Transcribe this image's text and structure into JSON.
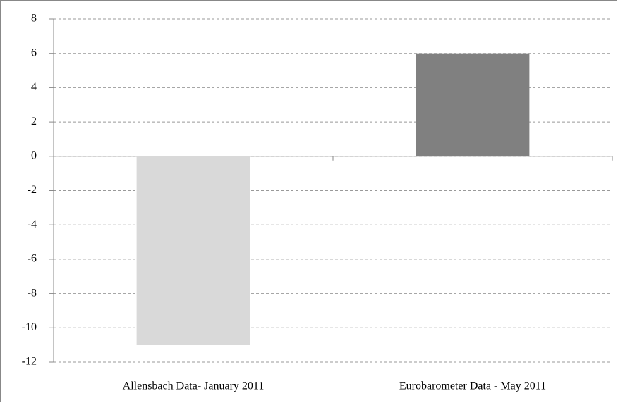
{
  "chart_data": {
    "type": "bar",
    "categories": [
      "Allensbach Data- January 2011",
      "Eurobarometer Data - May 2011"
    ],
    "values": [
      -11,
      6
    ],
    "colors": [
      "#d9d9d9",
      "#808080"
    ],
    "ylim": [
      -12,
      8
    ],
    "yticks": [
      -12,
      -10,
      -8,
      -6,
      -4,
      -2,
      0,
      2,
      4,
      6,
      8
    ],
    "grid": true
  }
}
